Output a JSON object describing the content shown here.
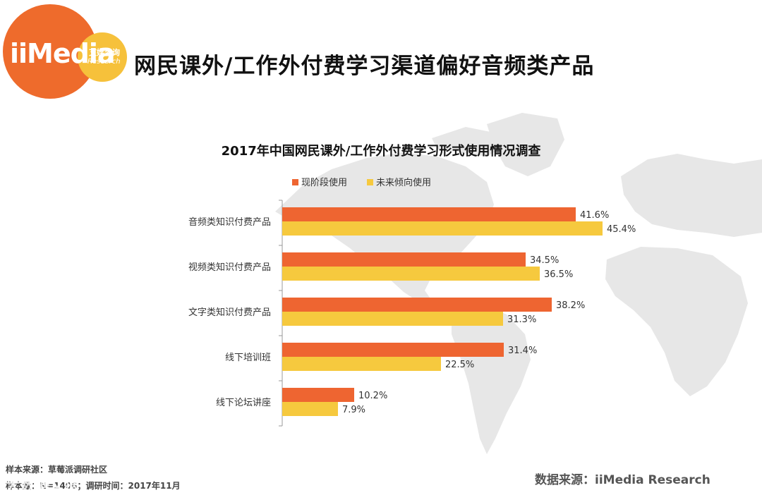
{
  "logo": {
    "wordmark": "iiMedia",
    "cn_name": "艾媒咨询",
    "research": "Research"
  },
  "page_title": "网民课外/工作外付费学习渠道偏好音频类产品",
  "colors": {
    "series_current": "#ee6531",
    "series_future": "#f6c93e",
    "map": "#e6e6e6",
    "logo_orange": "#ee6b2c",
    "logo_yellow": "#f6c13b"
  },
  "chart_data": {
    "type": "bar",
    "orientation": "horizontal",
    "title": "2017年中国网民课外/工作外付费学习形式使用情况调查",
    "categories": [
      "音频类知识付费产品",
      "视频类知识付费产品",
      "文字类知识付费产品",
      "线下培训班",
      "线下论坛讲座"
    ],
    "series": [
      {
        "name": "现阶段使用",
        "values": [
          41.6,
          34.5,
          38.2,
          31.4,
          10.2
        ]
      },
      {
        "name": "未来倾向使用",
        "values": [
          45.4,
          36.5,
          31.3,
          22.5,
          7.9
        ]
      }
    ],
    "value_labels": [
      [
        "41.6%",
        "34.5%",
        "38.2%",
        "31.4%",
        "10.2%"
      ],
      [
        "45.4%",
        "36.5%",
        "31.3%",
        "22.5%",
        "7.9%"
      ]
    ],
    "xlim": [
      0,
      50
    ],
    "grid": false,
    "legend_position": "top"
  },
  "footer": {
    "sample_source": "样本来源：草莓派调研社区",
    "sample_size": "样本量：N=1406；调研时间：2017年11月",
    "data_source": "数据来源：iiMedia Research",
    "watermark": "大数据文摘"
  }
}
